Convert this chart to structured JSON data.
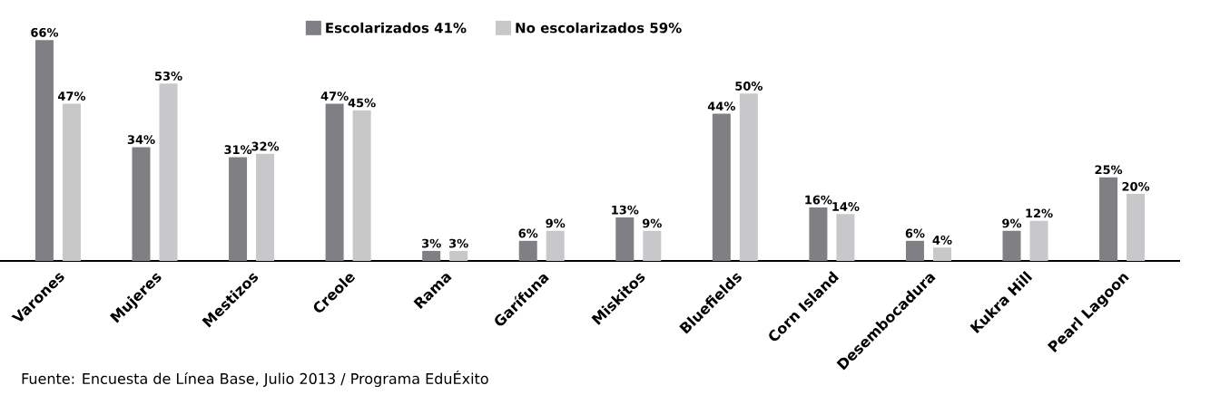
{
  "chart_data": {
    "type": "bar",
    "categories": [
      "Varones",
      "Mujeres",
      "Mestizos",
      "Creole",
      "Rama",
      "Garífuna",
      "Miskitos",
      "Bluefields",
      "Corn Island",
      "Desembocadura",
      "Kukra Hill",
      "Pearl Lagoon"
    ],
    "series": [
      {
        "name": "Escolarizados 41%",
        "color": "#808084",
        "values": [
          66,
          34,
          31,
          47,
          3,
          6,
          13,
          44,
          16,
          6,
          9,
          25
        ],
        "value_labels": [
          "66%",
          "34%",
          "31%",
          "47%",
          "3%",
          "6%",
          "13%",
          "44%",
          "16%",
          "6%",
          "9%",
          "25%"
        ]
      },
      {
        "name": "No escolarizados 59%",
        "color": "#c8c8ca",
        "values": [
          47,
          53,
          32,
          45,
          3,
          9,
          9,
          50,
          14,
          4,
          12,
          20
        ],
        "value_labels": [
          "47%",
          "53%",
          "32%",
          "45%",
          "3%",
          "9%",
          "9%",
          "50%",
          "14%",
          "4%",
          "12%",
          "20%"
        ]
      }
    ],
    "legend": "top",
    "annotations": [
      "Fuente: Encuesta de Línea Base, Julio 2013 / Programa EduÉxito"
    ]
  }
}
